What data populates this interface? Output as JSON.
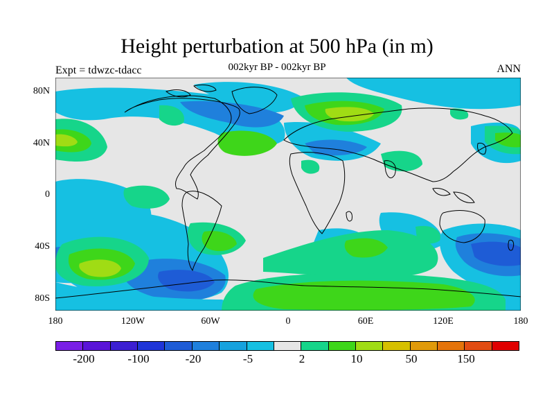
{
  "title": "Height perturbation at 500 hPa (in m)",
  "subtitle": "002kyr BP - 002kyr BP",
  "left_label": "Expt = tdwzc-tdacc",
  "right_label": "ANN",
  "colors": {
    "background_field": "#e6e6e6",
    "coastline": "#000000"
  },
  "lat_labels": [
    "80N",
    "40N",
    "0",
    "40S",
    "80S"
  ],
  "lon_labels": [
    "180",
    "120W",
    "60W",
    "0",
    "60E",
    "120E",
    "180"
  ],
  "colorbar": {
    "colors": [
      "#7a1fe6",
      "#5a14d8",
      "#3c1fd2",
      "#1f35d8",
      "#1e5cd6",
      "#1f80dc",
      "#16a2de",
      "#16c0e2",
      "#e6e6e6",
      "#16d58a",
      "#3ed61a",
      "#a0dc14",
      "#d6c000",
      "#e09a0a",
      "#e4740a",
      "#e24c12",
      "#e00000"
    ],
    "labels": [
      "-200",
      "-100",
      "-20",
      "-5",
      "2",
      "10",
      "50",
      "150"
    ]
  }
}
